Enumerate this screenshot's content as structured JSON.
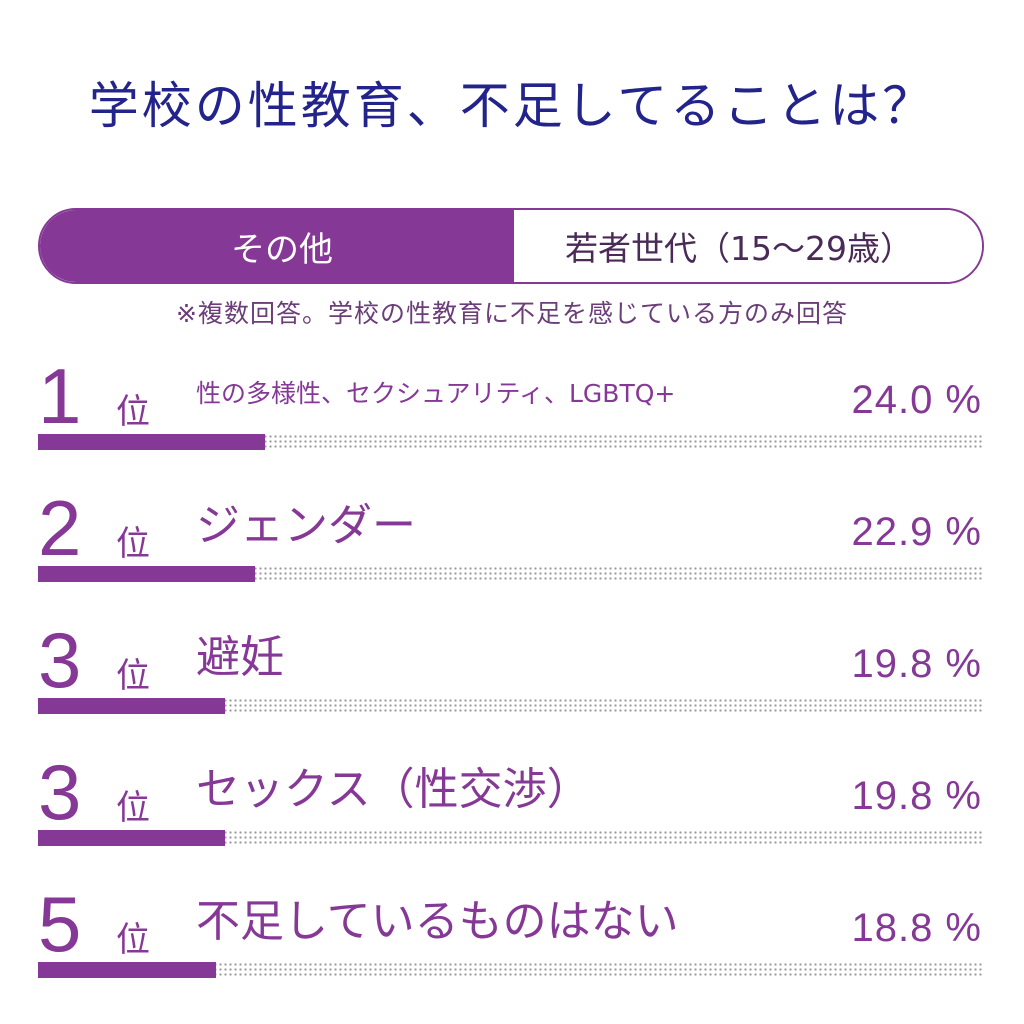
{
  "title": "学校の性教育、不足してることは？",
  "tabs": [
    {
      "label": "その他",
      "active": true
    },
    {
      "label": "若者世代（15～29歳）",
      "active": false
    }
  ],
  "note": "※複数回答。学校の性教育に不足を感じている方のみ回答",
  "colors": {
    "accent": "#863896",
    "title": "#23238c",
    "dots": "#9a9a9a"
  },
  "rank_suffix": "位",
  "percent_unit": "%",
  "chart_data": {
    "type": "bar",
    "orientation": "horizontal",
    "title": "学校の性教育、不足してることは？",
    "categories": [
      "性の多様性、セクシュアリティ、LGBTQ+",
      "ジェンダー",
      "避妊",
      "セックス（性交渉）",
      "不足しているものはない"
    ],
    "ranks": [
      "1",
      "2",
      "3",
      "3",
      "5"
    ],
    "values": [
      24.0,
      22.9,
      19.8,
      19.8,
      18.8
    ],
    "value_labels": [
      "24.0 %",
      "22.9 %",
      "19.8 %",
      "19.8 %",
      "18.8 %"
    ],
    "unit": "%",
    "xlim": [
      0,
      100
    ],
    "grid": false
  }
}
